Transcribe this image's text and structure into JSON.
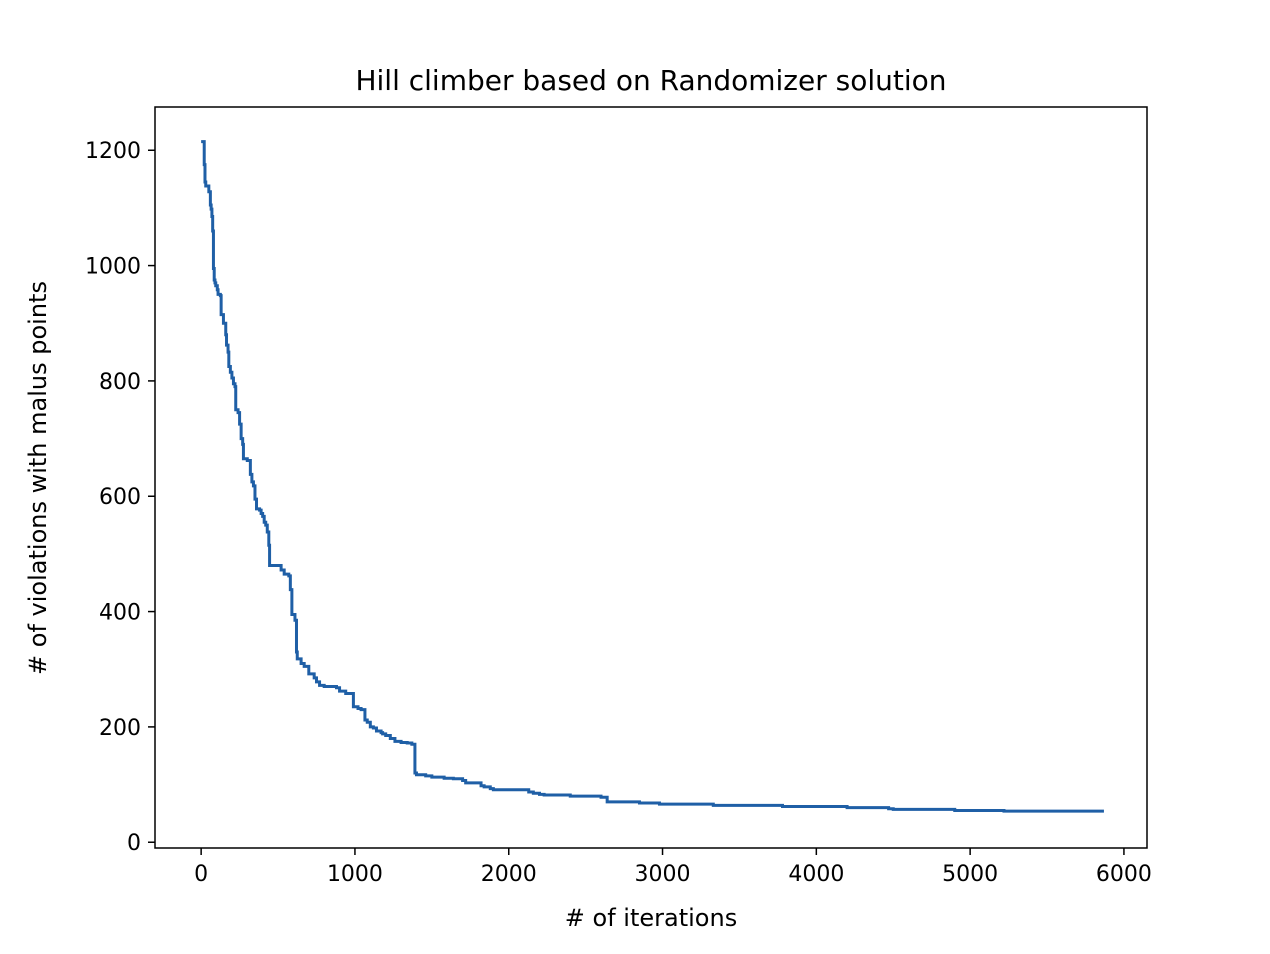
{
  "chart_data": {
    "type": "line",
    "title": "Hill climber based on Randomizer solution",
    "xlabel": "# of iterations",
    "ylabel": "# of violations with malus points",
    "xlim": [
      -300,
      6150
    ],
    "ylim": [
      -10,
      1275
    ],
    "grid": false,
    "legend": "none",
    "xticks": [
      0,
      1000,
      2000,
      3000,
      4000,
      5000,
      6000
    ],
    "yticks": [
      0,
      200,
      400,
      600,
      800,
      1000,
      1200
    ],
    "series": [
      {
        "name": "",
        "color": "#1f5fa6",
        "style": "step",
        "points": [
          [
            0,
            1215
          ],
          [
            20,
            1175
          ],
          [
            25,
            1145
          ],
          [
            30,
            1138
          ],
          [
            50,
            1128
          ],
          [
            60,
            1105
          ],
          [
            65,
            1098
          ],
          [
            70,
            1085
          ],
          [
            75,
            1060
          ],
          [
            80,
            995
          ],
          [
            85,
            975
          ],
          [
            90,
            970
          ],
          [
            95,
            965
          ],
          [
            105,
            958
          ],
          [
            110,
            950
          ],
          [
            125,
            948
          ],
          [
            130,
            915
          ],
          [
            145,
            900
          ],
          [
            160,
            880
          ],
          [
            165,
            862
          ],
          [
            175,
            850
          ],
          [
            180,
            825
          ],
          [
            190,
            815
          ],
          [
            200,
            805
          ],
          [
            210,
            795
          ],
          [
            220,
            790
          ],
          [
            225,
            750
          ],
          [
            240,
            745
          ],
          [
            250,
            725
          ],
          [
            260,
            700
          ],
          [
            270,
            690
          ],
          [
            275,
            665
          ],
          [
            300,
            662
          ],
          [
            320,
            638
          ],
          [
            330,
            625
          ],
          [
            340,
            618
          ],
          [
            350,
            595
          ],
          [
            360,
            578
          ],
          [
            380,
            576
          ],
          [
            390,
            570
          ],
          [
            400,
            565
          ],
          [
            410,
            555
          ],
          [
            420,
            550
          ],
          [
            430,
            538
          ],
          [
            440,
            515
          ],
          [
            445,
            480
          ],
          [
            520,
            472
          ],
          [
            540,
            465
          ],
          [
            570,
            462
          ],
          [
            580,
            438
          ],
          [
            590,
            395
          ],
          [
            610,
            385
          ],
          [
            620,
            330
          ],
          [
            625,
            318
          ],
          [
            650,
            310
          ],
          [
            670,
            305
          ],
          [
            700,
            292
          ],
          [
            735,
            285
          ],
          [
            750,
            278
          ],
          [
            770,
            272
          ],
          [
            800,
            270
          ],
          [
            880,
            268
          ],
          [
            900,
            262
          ],
          [
            940,
            258
          ],
          [
            990,
            235
          ],
          [
            1020,
            232
          ],
          [
            1040,
            230
          ],
          [
            1065,
            212
          ],
          [
            1080,
            208
          ],
          [
            1100,
            200
          ],
          [
            1120,
            198
          ],
          [
            1140,
            193
          ],
          [
            1170,
            190
          ],
          [
            1180,
            188
          ],
          [
            1200,
            185
          ],
          [
            1230,
            180
          ],
          [
            1260,
            175
          ],
          [
            1300,
            173
          ],
          [
            1340,
            172
          ],
          [
            1370,
            170
          ],
          [
            1390,
            120
          ],
          [
            1400,
            117
          ],
          [
            1460,
            115
          ],
          [
            1500,
            113
          ],
          [
            1580,
            111
          ],
          [
            1640,
            110
          ],
          [
            1700,
            107
          ],
          [
            1720,
            103
          ],
          [
            1820,
            98
          ],
          [
            1840,
            96
          ],
          [
            1880,
            93
          ],
          [
            1900,
            91
          ],
          [
            2130,
            87
          ],
          [
            2160,
            85
          ],
          [
            2200,
            83
          ],
          [
            2230,
            82
          ],
          [
            2400,
            80
          ],
          [
            2600,
            78
          ],
          [
            2640,
            70
          ],
          [
            2850,
            68
          ],
          [
            2980,
            66
          ],
          [
            3330,
            64
          ],
          [
            3780,
            62
          ],
          [
            4200,
            60
          ],
          [
            4470,
            58
          ],
          [
            4500,
            57
          ],
          [
            4900,
            55
          ],
          [
            5220,
            54
          ],
          [
            5870,
            54
          ]
        ]
      }
    ]
  }
}
